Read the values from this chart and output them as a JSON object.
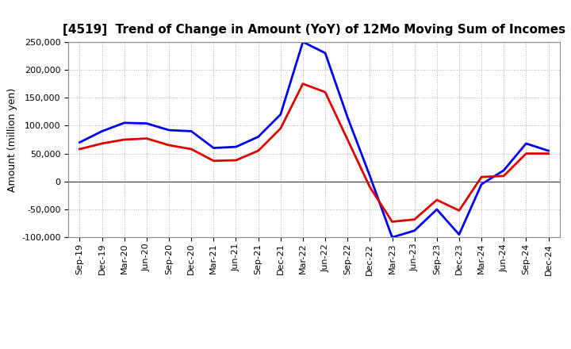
{
  "title": "[4519]  Trend of Change in Amount (YoY) of 12Mo Moving Sum of Incomes",
  "ylabel": "Amount (million yen)",
  "background_color": "#ffffff",
  "plot_background": "#ffffff",
  "grid_color": "#aaaaaa",
  "x_labels": [
    "Sep-19",
    "Dec-19",
    "Mar-20",
    "Jun-20",
    "Sep-20",
    "Dec-20",
    "Mar-21",
    "Jun-21",
    "Sep-21",
    "Dec-21",
    "Mar-22",
    "Jun-22",
    "Sep-22",
    "Dec-22",
    "Mar-23",
    "Jun-23",
    "Sep-23",
    "Dec-23",
    "Mar-24",
    "Jun-24",
    "Sep-24",
    "Dec-24"
  ],
  "ordinary_income": [
    70000,
    90000,
    105000,
    104000,
    92000,
    90000,
    60000,
    62000,
    80000,
    120000,
    250000,
    230000,
    115000,
    10000,
    -100000,
    -88000,
    -50000,
    -95000,
    -5000,
    20000,
    68000,
    55000
  ],
  "net_income": [
    58000,
    68000,
    75000,
    77000,
    65000,
    58000,
    37000,
    38000,
    55000,
    95000,
    175000,
    160000,
    75000,
    -10000,
    -72000,
    -68000,
    -33000,
    -52000,
    8000,
    10000,
    50000,
    50000
  ],
  "ordinary_color": "#0000ee",
  "net_color": "#dd0000",
  "ylim": [
    -100000,
    250000
  ],
  "yticks": [
    -100000,
    -50000,
    0,
    50000,
    100000,
    150000,
    200000,
    250000
  ],
  "line_width": 2.0,
  "title_fontsize": 11,
  "tick_fontsize": 8,
  "ylabel_fontsize": 9
}
